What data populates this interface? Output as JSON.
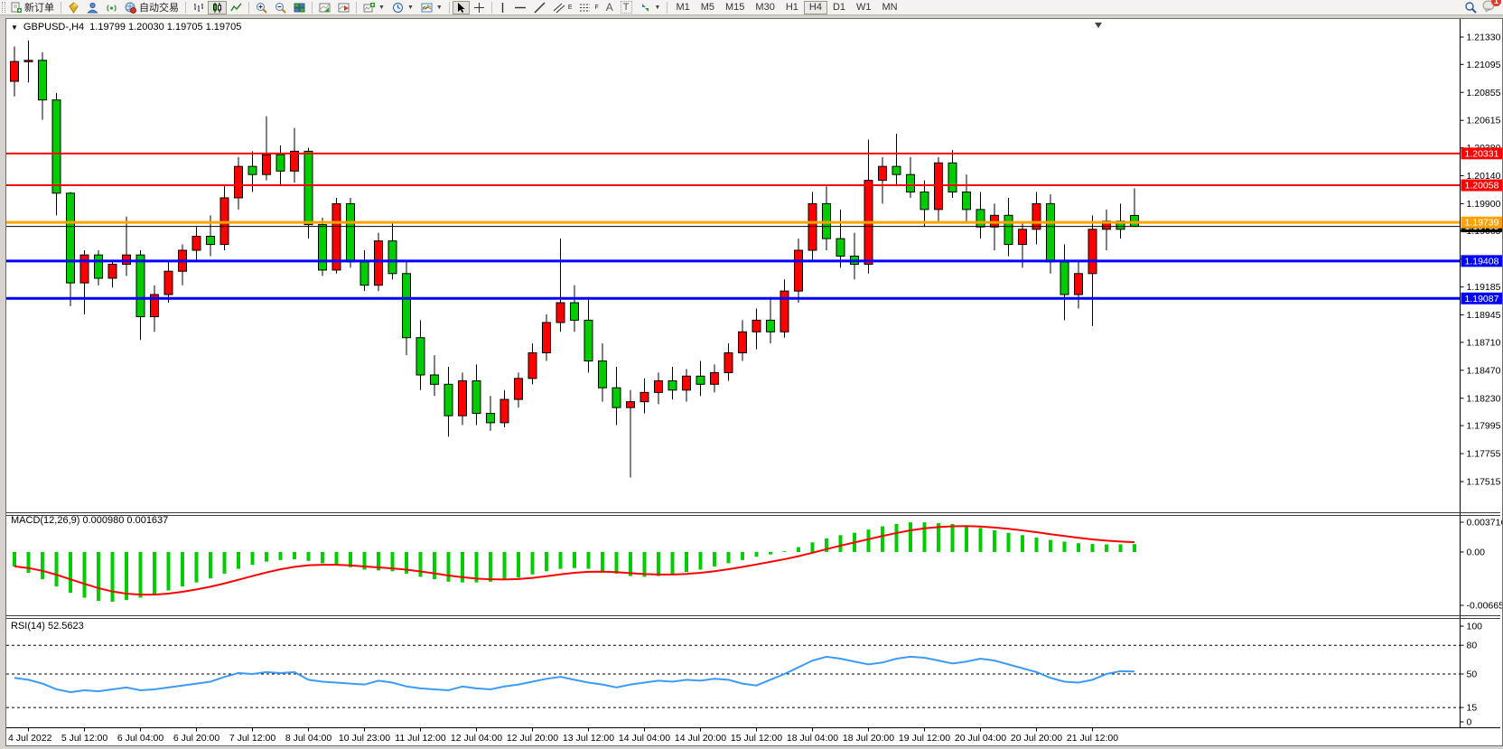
{
  "toolbar": {
    "new_order": "新订单",
    "auto_trading": "自动交易",
    "timeframes": [
      "M1",
      "M5",
      "M15",
      "M30",
      "H1",
      "H4",
      "D1",
      "W1",
      "MN"
    ],
    "active_timeframe": "H4",
    "notification_badge": "1",
    "tool_letters": {
      "channel": "E",
      "fibonacci": "F",
      "text": "A",
      "label": "T"
    },
    "icons": [
      "new-order-icon",
      "market-icon",
      "community-icon",
      "signal-icon",
      "autotrade-icon",
      "bar-chart-icon",
      "candle-chart-icon",
      "line-chart-icon",
      "zoom-in-icon",
      "zoom-out-icon",
      "tile-windows-icon",
      "auto-scroll-icon",
      "chart-shift-icon",
      "indicators-icon",
      "periods-icon",
      "templates-icon",
      "cursor-icon",
      "crosshair-icon",
      "vertical-line-icon",
      "horizontal-line-icon",
      "trendline-icon",
      "channel-icon",
      "fibonacci-icon",
      "text-icon",
      "label-icon",
      "arrows-icon",
      "search-icon",
      "chat-icon"
    ]
  },
  "chart_window": {
    "title_symbol": "GBPUSD-,H4",
    "title_quotes": "1.19799 1.20030 1.19705 1.19705",
    "macd_label": "MACD(12,26,9) 0.000980 0.001637",
    "rsi_label": "RSI(14) 52.5623"
  },
  "chart_data": [
    {
      "type": "candlestick",
      "title": "GBPUSD-,H4",
      "symbol": "GBPUSD-",
      "period": "H4",
      "current_bar": {
        "open": 1.19799,
        "high": 1.2003,
        "low": 1.19705,
        "close": 1.19705
      },
      "up_color": "#FF0000",
      "down_color": "#00CC00",
      "ylim": [
        1.1726,
        1.2148
      ],
      "y_axis_ticks": [
        "1.21330",
        "1.21095",
        "1.20855",
        "1.20615",
        "1.20380",
        "1.20140",
        "1.19900",
        "1.19665",
        "1.19425",
        "1.19185",
        "1.18945",
        "1.18710",
        "1.18470",
        "1.18230",
        "1.17995",
        "1.17755",
        "1.17515"
      ],
      "x_labels": [
        "4 Jul 2022",
        "5 Jul 12:00",
        "6 Jul 04:00",
        "6 Jul 20:00",
        "7 Jul 12:00",
        "8 Jul 04:00",
        "10 Jul 23:00",
        "11 Jul 12:00",
        "12 Jul 04:00",
        "12 Jul 20:00",
        "13 Jul 12:00",
        "14 Jul 04:00",
        "14 Jul 20:00",
        "15 Jul 12:00",
        "18 Jul 04:00",
        "18 Jul 20:00",
        "19 Jul 12:00",
        "20 Jul 04:00",
        "20 Jul 20:00",
        "21 Jul 12:00"
      ],
      "bars_per_label": 4,
      "hlines": [
        {
          "price": 1.20331,
          "label": "1.20331",
          "color": "#FF0000",
          "width": 2
        },
        {
          "price": 1.20058,
          "label": "1.20058",
          "color": "#FF0000",
          "width": 2
        },
        {
          "price": 1.19739,
          "label": "1.19739",
          "color": "#FFA200",
          "width": 3
        },
        {
          "price": 1.19705,
          "label": "1.19705",
          "color": "#000000",
          "width": 1
        },
        {
          "price": 1.19408,
          "label": "1.19408",
          "color": "#0000FF",
          "width": 3
        },
        {
          "price": 1.19087,
          "label": "1.19087",
          "color": "#0000FF",
          "width": 3
        }
      ],
      "candles": [
        [
          1.2095,
          1.2125,
          1.2082,
          1.2112
        ],
        [
          1.2112,
          1.213,
          1.2094,
          1.2113
        ],
        [
          1.2113,
          1.212,
          1.2062,
          1.2079
        ],
        [
          1.2079,
          1.2085,
          1.198,
          1.1999
        ],
        [
          1.1999,
          1.2,
          1.1902,
          1.1922
        ],
        [
          1.1922,
          1.195,
          1.1895,
          1.1946
        ],
        [
          1.1946,
          1.195,
          1.192,
          1.1926
        ],
        [
          1.1926,
          1.1942,
          1.1918,
          1.1938
        ],
        [
          1.1938,
          1.1979,
          1.1928,
          1.1946
        ],
        [
          1.1946,
          1.195,
          1.1873,
          1.1893
        ],
        [
          1.1893,
          1.192,
          1.188,
          1.1912
        ],
        [
          1.1912,
          1.194,
          1.1905,
          1.1932
        ],
        [
          1.1932,
          1.1955,
          1.192,
          1.195
        ],
        [
          1.195,
          1.197,
          1.194,
          1.1962
        ],
        [
          1.1962,
          1.198,
          1.1945,
          1.1955
        ],
        [
          1.1955,
          1.2005,
          1.195,
          1.1995
        ],
        [
          1.1995,
          1.203,
          1.1985,
          1.2022
        ],
        [
          1.2022,
          1.2035,
          1.2,
          1.2015
        ],
        [
          1.2015,
          1.2065,
          1.201,
          1.2032
        ],
        [
          1.2032,
          1.204,
          1.2005,
          1.2018
        ],
        [
          1.2018,
          1.2055,
          1.2008,
          1.2035
        ],
        [
          1.2035,
          1.2038,
          1.196,
          1.1972
        ],
        [
          1.1972,
          1.1978,
          1.1928,
          1.1933
        ],
        [
          1.1933,
          1.1995,
          1.193,
          1.199
        ],
        [
          1.199,
          1.1995,
          1.1935,
          1.194
        ],
        [
          1.194,
          1.195,
          1.1915,
          1.192
        ],
        [
          1.192,
          1.1965,
          1.1915,
          1.1958
        ],
        [
          1.1958,
          1.1975,
          1.1925,
          1.193
        ],
        [
          1.193,
          1.194,
          1.186,
          1.1875
        ],
        [
          1.1875,
          1.189,
          1.183,
          1.1843
        ],
        [
          1.1843,
          1.186,
          1.1825,
          1.1835
        ],
        [
          1.1835,
          1.185,
          1.179,
          1.1808
        ],
        [
          1.1808,
          1.1845,
          1.18,
          1.1838
        ],
        [
          1.1838,
          1.1852,
          1.18,
          1.181
        ],
        [
          1.181,
          1.1825,
          1.1795,
          1.1802
        ],
        [
          1.1802,
          1.183,
          1.1798,
          1.1822
        ],
        [
          1.1822,
          1.1845,
          1.1815,
          1.184
        ],
        [
          1.184,
          1.187,
          1.1835,
          1.1862
        ],
        [
          1.1862,
          1.1895,
          1.1855,
          1.1888
        ],
        [
          1.1888,
          1.196,
          1.188,
          1.1905
        ],
        [
          1.1905,
          1.192,
          1.188,
          1.189
        ],
        [
          1.189,
          1.191,
          1.1845,
          1.1855
        ],
        [
          1.1855,
          1.187,
          1.182,
          1.1832
        ],
        [
          1.1832,
          1.185,
          1.18,
          1.1815
        ],
        [
          1.1815,
          1.183,
          1.1755,
          1.182
        ],
        [
          1.182,
          1.184,
          1.181,
          1.1828
        ],
        [
          1.1828,
          1.1845,
          1.1818,
          1.1838
        ],
        [
          1.1838,
          1.185,
          1.1822,
          1.183
        ],
        [
          1.183,
          1.1848,
          1.182,
          1.1842
        ],
        [
          1.1842,
          1.1855,
          1.1825,
          1.1835
        ],
        [
          1.1835,
          1.1852,
          1.1828,
          1.1845
        ],
        [
          1.1845,
          1.187,
          1.1838,
          1.1862
        ],
        [
          1.1862,
          1.189,
          1.1855,
          1.188
        ],
        [
          1.188,
          1.19,
          1.1865,
          1.189
        ],
        [
          1.189,
          1.191,
          1.187,
          1.188
        ],
        [
          1.188,
          1.1925,
          1.1875,
          1.1915
        ],
        [
          1.1915,
          1.196,
          1.1905,
          1.195
        ],
        [
          1.195,
          1.2,
          1.194,
          1.199
        ],
        [
          1.199,
          1.2005,
          1.195,
          1.196
        ],
        [
          1.196,
          1.1985,
          1.1935,
          1.1945
        ],
        [
          1.1945,
          1.1965,
          1.1925,
          1.1938
        ],
        [
          1.1938,
          1.2045,
          1.193,
          1.201
        ],
        [
          1.201,
          1.203,
          1.199,
          1.2022
        ],
        [
          1.2022,
          1.205,
          1.2005,
          1.2015
        ],
        [
          1.2015,
          1.203,
          1.1995,
          1.2
        ],
        [
          1.2,
          1.201,
          1.197,
          1.1985
        ],
        [
          1.1985,
          1.203,
          1.1975,
          1.2025
        ],
        [
          1.2025,
          1.2036,
          1.1995,
          1.2
        ],
        [
          1.2,
          1.2015,
          1.1975,
          1.1985
        ],
        [
          1.1985,
          1.2,
          1.196,
          1.197
        ],
        [
          1.197,
          1.199,
          1.195,
          1.198
        ],
        [
          1.198,
          1.1995,
          1.1945,
          1.1955
        ],
        [
          1.1955,
          1.1975,
          1.1935,
          1.1968
        ],
        [
          1.1968,
          1.2,
          1.1955,
          1.199
        ],
        [
          1.199,
          1.1998,
          1.193,
          1.194
        ],
        [
          1.194,
          1.1955,
          1.189,
          1.1912
        ],
        [
          1.1912,
          1.194,
          1.19,
          1.193
        ],
        [
          1.193,
          1.198,
          1.1885,
          1.1968
        ],
        [
          1.1968,
          1.1985,
          1.195,
          1.1975
        ],
        [
          1.1975,
          1.199,
          1.196,
          1.1968
        ],
        [
          1.19799,
          1.2003,
          1.19705,
          1.19705
        ]
      ]
    },
    {
      "type": "bar",
      "name": "MACD",
      "params": "12,26,9",
      "main_value": "0.000980",
      "signal_value": "0.001637",
      "histogram_color": "#00CC00",
      "signal_color": "#FF0000",
      "y_ticks": [
        "0.003716",
        "0.00",
        "-0.006657"
      ],
      "ylim": [
        -0.006657,
        0.003716
      ],
      "values": [
        -0.0018,
        -0.0026,
        -0.0034,
        -0.0043,
        -0.0051,
        -0.0057,
        -0.0061,
        -0.0062,
        -0.006,
        -0.0057,
        -0.0053,
        -0.0048,
        -0.0043,
        -0.0038,
        -0.0033,
        -0.0027,
        -0.0021,
        -0.0016,
        -0.0012,
        -0.001,
        -0.0009,
        -0.0011,
        -0.0014,
        -0.0016,
        -0.0019,
        -0.0022,
        -0.0023,
        -0.0024,
        -0.0027,
        -0.0031,
        -0.0034,
        -0.0037,
        -0.0038,
        -0.0038,
        -0.0037,
        -0.0035,
        -0.0032,
        -0.0028,
        -0.0024,
        -0.0021,
        -0.002,
        -0.0021,
        -0.0024,
        -0.0027,
        -0.003,
        -0.0031,
        -0.003,
        -0.0028,
        -0.0025,
        -0.0022,
        -0.0018,
        -0.0014,
        -0.001,
        -0.0006,
        -0.0003,
        0.0001,
        0.0006,
        0.0012,
        0.0017,
        0.0021,
        0.0024,
        0.0028,
        0.0032,
        0.0035,
        0.0037,
        0.0037,
        0.0036,
        0.0035,
        0.0033,
        0.003,
        0.0027,
        0.0024,
        0.0021,
        0.0018,
        0.0015,
        0.0013,
        0.0011,
        0.001,
        0.00095,
        0.00096,
        0.00098
      ]
    },
    {
      "type": "line",
      "name": "RSI",
      "params": "14",
      "current_value": "52.5623",
      "line_color": "#3E9BF5",
      "levels": [
        80,
        50,
        15
      ],
      "y_ticks": [
        "100",
        "80",
        "50",
        "15",
        "0"
      ],
      "ylim": [
        0,
        100
      ],
      "values": [
        46,
        44,
        40,
        34,
        31,
        33,
        32,
        34,
        36,
        33,
        34,
        36,
        38,
        40,
        42,
        47,
        51,
        50,
        52,
        51,
        52,
        44,
        42,
        41,
        40,
        39,
        43,
        41,
        37,
        35,
        34,
        33,
        37,
        35,
        34,
        37,
        39,
        42,
        45,
        47,
        44,
        41,
        39,
        36,
        39,
        41,
        43,
        42,
        44,
        43,
        45,
        44,
        40,
        38,
        44,
        50,
        57,
        64,
        68,
        66,
        63,
        60,
        62,
        66,
        68,
        67,
        64,
        61,
        63,
        66,
        64,
        60,
        56,
        52,
        46,
        42,
        41,
        44,
        50,
        53,
        52.56
      ]
    }
  ]
}
